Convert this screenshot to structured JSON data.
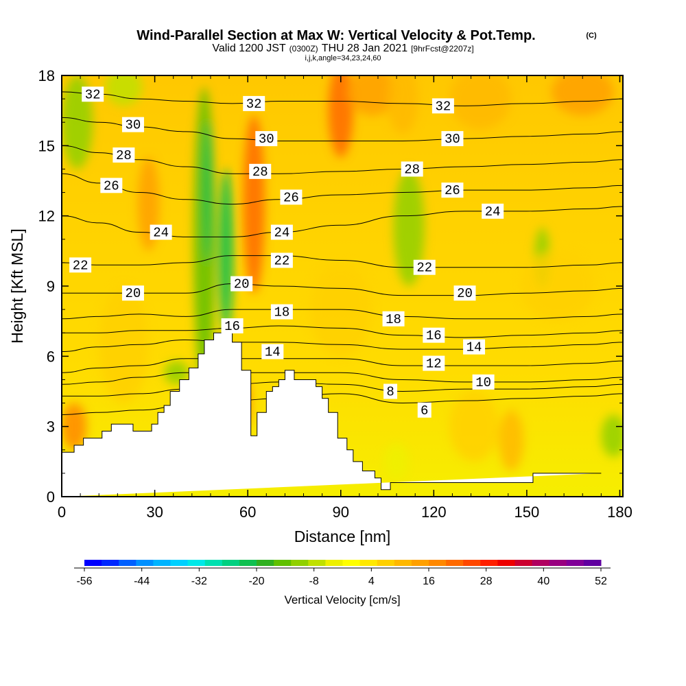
{
  "header": {
    "title": "Wind-Parallel Section at Max W: Vertical Velocity & Pot.Temp.",
    "copyright": "(C)",
    "valid_prefix": "Valid 1200 JST",
    "valid_z": "(0300Z)",
    "valid_date": "THU 28 Jan 2021",
    "forecast": "[9hrFcst@2207z]",
    "indices": "i,j,k,angle=34,23,24,60"
  },
  "chart_data": {
    "type": "heatmap",
    "xlabel": "Distance [nm]",
    "ylabel": "Height [Kft MSL]",
    "xlim": [
      0,
      181
    ],
    "ylim": [
      0,
      18
    ],
    "xticks": [
      0,
      30,
      60,
      90,
      120,
      150,
      180
    ],
    "yticks": [
      0,
      3,
      6,
      9,
      12,
      15,
      18
    ],
    "terrain": {
      "x": [
        0,
        4,
        4,
        7,
        7,
        13,
        13,
        16,
        16,
        23,
        23,
        29,
        29,
        31,
        31,
        33,
        33,
        35,
        35,
        38,
        38,
        41,
        41,
        44,
        44,
        46,
        46,
        49,
        49,
        55,
        55,
        58,
        58,
        61,
        61,
        63,
        63,
        66,
        66,
        68,
        68,
        70,
        70,
        72,
        72,
        75,
        75,
        82,
        82,
        84,
        84,
        86,
        86,
        89,
        89,
        92,
        92,
        94,
        94,
        97,
        97,
        101,
        101,
        103,
        103,
        106,
        106,
        152,
        152,
        174,
        174,
        181
      ],
      "y": [
        1.9,
        1.9,
        2.2,
        2.2,
        2.5,
        2.5,
        2.8,
        2.8,
        3.1,
        3.1,
        2.8,
        2.8,
        3.1,
        3.1,
        3.6,
        3.6,
        3.9,
        3.9,
        4.5,
        4.5,
        5.0,
        5.0,
        5.5,
        5.5,
        6.1,
        6.1,
        6.7,
        6.7,
        7.0,
        7.0,
        6.6,
        6.6,
        5.4,
        5.4,
        2.6,
        2.6,
        3.6,
        3.6,
        4.5,
        4.5,
        4.7,
        4.7,
        5.0,
        5.0,
        5.4,
        5.4,
        5.0,
        5.0,
        4.7,
        4.7,
        4.2,
        4.2,
        3.6,
        3.6,
        2.5,
        2.5,
        2.0,
        2.0,
        1.5,
        1.5,
        1.1,
        1.1,
        0.8,
        0.8,
        0.3,
        0.3,
        0.6,
        0.6,
        1.0,
        1.0,
        1.0
      ]
    },
    "theta_contours": [
      {
        "value": 32,
        "x": [
          0,
          12,
          25,
          40,
          55,
          70,
          90,
          110,
          130,
          150,
          170,
          181
        ],
        "y": [
          17.3,
          17.2,
          17.0,
          16.9,
          16.8,
          16.9,
          16.9,
          16.8,
          16.7,
          16.8,
          16.9,
          17.0
        ]
      },
      {
        "value": 30,
        "x": [
          0,
          12,
          25,
          40,
          55,
          70,
          90,
          110,
          130,
          150,
          170,
          181
        ],
        "y": [
          16.2,
          16.0,
          15.8,
          15.6,
          15.3,
          15.2,
          15.2,
          15.2,
          15.3,
          15.4,
          15.5,
          15.6
        ]
      },
      {
        "value": 28,
        "x": [
          0,
          12,
          25,
          40,
          55,
          70,
          90,
          110,
          130,
          150,
          170,
          181
        ],
        "y": [
          15.0,
          14.7,
          14.4,
          14.1,
          13.8,
          13.8,
          13.9,
          14.0,
          14.1,
          14.2,
          14.3,
          14.4
        ]
      },
      {
        "value": 26,
        "x": [
          0,
          12,
          25,
          40,
          55,
          70,
          90,
          110,
          130,
          150,
          170,
          181
        ],
        "y": [
          13.8,
          13.4,
          13.0,
          12.7,
          12.5,
          12.7,
          12.9,
          13.0,
          13.1,
          13.1,
          13.2,
          13.3
        ]
      },
      {
        "value": 24,
        "x": [
          0,
          12,
          25,
          40,
          55,
          70,
          90,
          110,
          130,
          150,
          170,
          181
        ],
        "y": [
          12.0,
          11.7,
          11.3,
          11.1,
          11.1,
          11.3,
          11.6,
          12.0,
          12.2,
          12.2,
          12.3,
          12.4
        ]
      },
      {
        "value": 22,
        "x": [
          0,
          12,
          25,
          40,
          55,
          70,
          90,
          110,
          130,
          150,
          170,
          181
        ],
        "y": [
          10.0,
          9.9,
          9.9,
          10.0,
          10.3,
          10.3,
          10.1,
          9.8,
          9.8,
          9.8,
          9.9,
          10.0
        ]
      },
      {
        "value": 20,
        "x": [
          0,
          12,
          25,
          40,
          55,
          70,
          90,
          110,
          130,
          150,
          170,
          181
        ],
        "y": [
          8.7,
          8.7,
          8.7,
          8.7,
          9.1,
          9.0,
          8.9,
          8.6,
          8.6,
          8.7,
          8.8,
          8.9
        ]
      },
      {
        "value": 18,
        "x": [
          0,
          12,
          25,
          40,
          55,
          70,
          90,
          110,
          130,
          150,
          170,
          181
        ],
        "y": [
          7.6,
          7.7,
          7.8,
          7.7,
          8.0,
          8.0,
          8.0,
          7.7,
          7.6,
          7.6,
          7.7,
          7.8
        ]
      },
      {
        "value": 16,
        "x": [
          0,
          12,
          25,
          40,
          55,
          70,
          90,
          110,
          130,
          150,
          170,
          181
        ],
        "y": [
          7.0,
          7.0,
          7.1,
          7.1,
          7.2,
          7.3,
          7.2,
          6.9,
          6.8,
          6.9,
          7.0,
          7.1
        ]
      },
      {
        "value": 14,
        "x": [
          0,
          12,
          25,
          40,
          55,
          70,
          90,
          110,
          130,
          150,
          170,
          181
        ],
        "y": [
          6.2,
          6.4,
          6.5,
          6.7,
          6.6,
          6.6,
          6.5,
          6.3,
          6.3,
          6.4,
          6.5,
          6.6
        ]
      },
      {
        "value": 12,
        "x": [
          0,
          12,
          25,
          40,
          55,
          70,
          90,
          110,
          130,
          150,
          170,
          181
        ],
        "y": [
          5.3,
          5.5,
          5.6,
          5.9,
          5.9,
          5.9,
          5.9,
          5.6,
          5.6,
          5.6,
          5.7,
          5.8
        ]
      },
      {
        "value": 10,
        "x": [
          0,
          12,
          25,
          40,
          55,
          70,
          90,
          110,
          130,
          150,
          170,
          181
        ],
        "y": [
          4.8,
          4.9,
          5.1,
          5.3,
          5.3,
          5.3,
          5.3,
          5.0,
          4.9,
          4.9,
          5.0,
          5.1
        ]
      },
      {
        "value": 8,
        "x": [
          0,
          12,
          25,
          40,
          55,
          70,
          90,
          110,
          130,
          150,
          170,
          181
        ],
        "y": [
          4.3,
          4.3,
          4.4,
          4.6,
          4.8,
          4.9,
          4.8,
          4.5,
          4.6,
          4.6,
          4.7,
          4.8
        ]
      },
      {
        "value": 6,
        "x": [
          0,
          12,
          25,
          40,
          55,
          70,
          90,
          110,
          130,
          150,
          170,
          181
        ],
        "y": [
          3.5,
          3.6,
          3.7,
          3.9,
          4.1,
          4.2,
          4.4,
          4.0,
          4.1,
          4.2,
          4.3,
          4.4
        ]
      }
    ],
    "contour_labels": [
      {
        "text": "32",
        "x": 10,
        "y": 17.2
      },
      {
        "text": "32",
        "x": 62,
        "y": 16.8
      },
      {
        "text": "32",
        "x": 123,
        "y": 16.7
      },
      {
        "text": "30",
        "x": 23,
        "y": 15.9
      },
      {
        "text": "30",
        "x": 66,
        "y": 15.3
      },
      {
        "text": "30",
        "x": 126,
        "y": 15.3
      },
      {
        "text": "28",
        "x": 20,
        "y": 14.6
      },
      {
        "text": "28",
        "x": 64,
        "y": 13.9
      },
      {
        "text": "28",
        "x": 113,
        "y": 14.0
      },
      {
        "text": "26",
        "x": 16,
        "y": 13.3
      },
      {
        "text": "26",
        "x": 74,
        "y": 12.8
      },
      {
        "text": "26",
        "x": 126,
        "y": 13.1
      },
      {
        "text": "24",
        "x": 32,
        "y": 11.3
      },
      {
        "text": "24",
        "x": 71,
        "y": 11.3
      },
      {
        "text": "24",
        "x": 139,
        "y": 12.2
      },
      {
        "text": "22",
        "x": 6,
        "y": 9.9
      },
      {
        "text": "22",
        "x": 71,
        "y": 10.1
      },
      {
        "text": "22",
        "x": 117,
        "y": 9.8
      },
      {
        "text": "20",
        "x": 23,
        "y": 8.7
      },
      {
        "text": "20",
        "x": 58,
        "y": 9.1
      },
      {
        "text": "20",
        "x": 130,
        "y": 8.7
      },
      {
        "text": "18",
        "x": 71,
        "y": 7.9
      },
      {
        "text": "18",
        "x": 107,
        "y": 7.6
      },
      {
        "text": "16",
        "x": 55,
        "y": 7.3
      },
      {
        "text": "16",
        "x": 120,
        "y": 6.9
      },
      {
        "text": "14",
        "x": 68,
        "y": 6.2
      },
      {
        "text": "14",
        "x": 133,
        "y": 6.4
      },
      {
        "text": "12",
        "x": 120,
        "y": 5.7
      },
      {
        "text": "10",
        "x": 136,
        "y": 4.9
      },
      {
        "text": "8",
        "x": 106,
        "y": 4.5
      },
      {
        "text": "6",
        "x": 117,
        "y": 3.7
      }
    ],
    "velocity_blobs": [
      {
        "x": 46,
        "y": 11.0,
        "rx": 3.5,
        "ry": 6.5,
        "value": -16
      },
      {
        "x": 53,
        "y": 10.5,
        "rx": 2.5,
        "ry": 3.5,
        "value": -22
      },
      {
        "x": 47,
        "y": 13.0,
        "rx": 1.5,
        "ry": 3.0,
        "value": -22
      },
      {
        "x": 112,
        "y": 11.5,
        "rx": 5.0,
        "ry": 2.5,
        "value": -10
      },
      {
        "x": 155,
        "y": 10.2,
        "rx": 2.5,
        "ry": 1.3,
        "value": -10
      },
      {
        "x": 5,
        "y": 16.0,
        "rx": 5.0,
        "ry": 2.0,
        "value": -10
      },
      {
        "x": 20,
        "y": 17.5,
        "rx": 6.0,
        "ry": 0.8,
        "value": -8
      },
      {
        "x": 37,
        "y": 5.3,
        "rx": 4.0,
        "ry": 0.5,
        "value": -10
      },
      {
        "x": 178,
        "y": 2.6,
        "rx": 4.0,
        "ry": 0.9,
        "value": -10
      },
      {
        "x": 108,
        "y": 1.5,
        "rx": 4.0,
        "ry": 0.8,
        "value": -4
      },
      {
        "x": 62,
        "y": 12.5,
        "rx": 3.5,
        "ry": 3.8,
        "value": 22
      },
      {
        "x": 90,
        "y": 16.5,
        "rx": 4.0,
        "ry": 2.0,
        "value": 22
      },
      {
        "x": 100,
        "y": 17.3,
        "rx": 8.0,
        "ry": 1.0,
        "value": 14
      },
      {
        "x": 110,
        "y": 17.0,
        "rx": 5.0,
        "ry": 1.5,
        "value": 12
      },
      {
        "x": 135,
        "y": 17.0,
        "rx": 10.0,
        "ry": 1.3,
        "value": 12
      },
      {
        "x": 168,
        "y": 17.3,
        "rx": 10.0,
        "ry": 1.0,
        "value": 14
      },
      {
        "x": 28,
        "y": 12.5,
        "rx": 3.5,
        "ry": 2.0,
        "value": 14
      },
      {
        "x": 4,
        "y": 3.0,
        "rx": 4.0,
        "ry": 1.0,
        "value": 16
      },
      {
        "x": 59,
        "y": 4.0,
        "rx": 2.0,
        "ry": 1.0,
        "value": 16
      },
      {
        "x": 145,
        "y": 2.4,
        "rx": 4.0,
        "ry": 1.3,
        "value": 12
      },
      {
        "x": 133,
        "y": 3.0,
        "rx": 8.0,
        "ry": 1.5,
        "value": 8
      },
      {
        "x": 20,
        "y": 6.5,
        "rx": 8.0,
        "ry": 2.5,
        "value": 8
      },
      {
        "x": 160,
        "y": 9.0,
        "rx": 12.0,
        "ry": 1.5,
        "value": 8
      },
      {
        "x": 90,
        "y": 8.0,
        "rx": 10.0,
        "ry": 2.0,
        "value": 8
      }
    ],
    "colorbar": {
      "label": "Vertical Velocity [cm/s]",
      "min": -56,
      "max": 52,
      "ticks": [
        -56,
        -44,
        -32,
        -20,
        -8,
        4,
        16,
        28,
        40,
        52
      ],
      "colors": [
        "#0000ff",
        "#0028ff",
        "#0060ff",
        "#0090ff",
        "#00b4ff",
        "#00d0ff",
        "#00e8e8",
        "#00e0b0",
        "#00d080",
        "#10c050",
        "#30b020",
        "#60c000",
        "#90d000",
        "#c0e000",
        "#eef000",
        "#ffff00",
        "#ffe800",
        "#ffd000",
        "#ffb800",
        "#ffa000",
        "#ff8800",
        "#ff6a00",
        "#ff4800",
        "#ff2000",
        "#ee0000",
        "#cc0030",
        "#b00060",
        "#980080",
        "#800098",
        "#6000a0"
      ]
    }
  }
}
